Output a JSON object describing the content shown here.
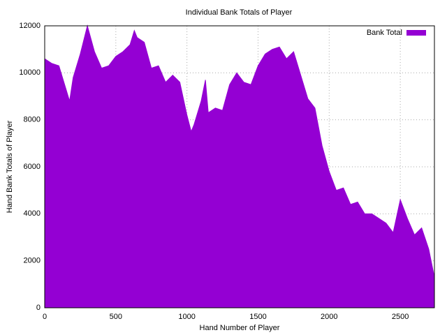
{
  "chart_data": {
    "type": "area",
    "title": "Individual Bank Totals of Player",
    "x_label": "Hand Number of Player",
    "y_label": "Hand Bank Totals of Player",
    "x": [
      0,
      50,
      100,
      150,
      175,
      200,
      250,
      300,
      350,
      400,
      450,
      500,
      550,
      600,
      630,
      650,
      700,
      750,
      800,
      850,
      900,
      950,
      1000,
      1030,
      1050,
      1100,
      1130,
      1150,
      1200,
      1250,
      1300,
      1350,
      1400,
      1450,
      1500,
      1550,
      1600,
      1650,
      1700,
      1750,
      1800,
      1850,
      1900,
      1950,
      2000,
      2050,
      2100,
      2150,
      2200,
      2250,
      2300,
      2350,
      2400,
      2450,
      2500,
      2550,
      2600,
      2650,
      2700,
      2740
    ],
    "series": [
      {
        "name": "Bank Total",
        "color": "#9400d3",
        "values": [
          10600,
          10400,
          10300,
          9300,
          8800,
          9800,
          10800,
          12000,
          10900,
          10200,
          10300,
          10700,
          10900,
          11200,
          11800,
          11500,
          11300,
          10200,
          10300,
          9600,
          9900,
          9600,
          8200,
          7500,
          7800,
          8800,
          9700,
          8300,
          8500,
          8400,
          9500,
          10000,
          9600,
          9500,
          10300,
          10800,
          11000,
          11100,
          10600,
          10900,
          9900,
          8900,
          8500,
          6900,
          5800,
          5000,
          5100,
          4400,
          4500,
          4000,
          4000,
          3800,
          3600,
          3200,
          4600,
          3800,
          3100,
          3400,
          2500,
          1300
        ]
      }
    ],
    "xlim": [
      0,
      2740
    ],
    "ylim": [
      0,
      12000
    ],
    "xticks": [
      0,
      500,
      1000,
      1500,
      2000,
      2500
    ],
    "yticks": [
      0,
      2000,
      4000,
      6000,
      8000,
      10000,
      12000
    ],
    "grid": true,
    "legend": "top-right"
  }
}
